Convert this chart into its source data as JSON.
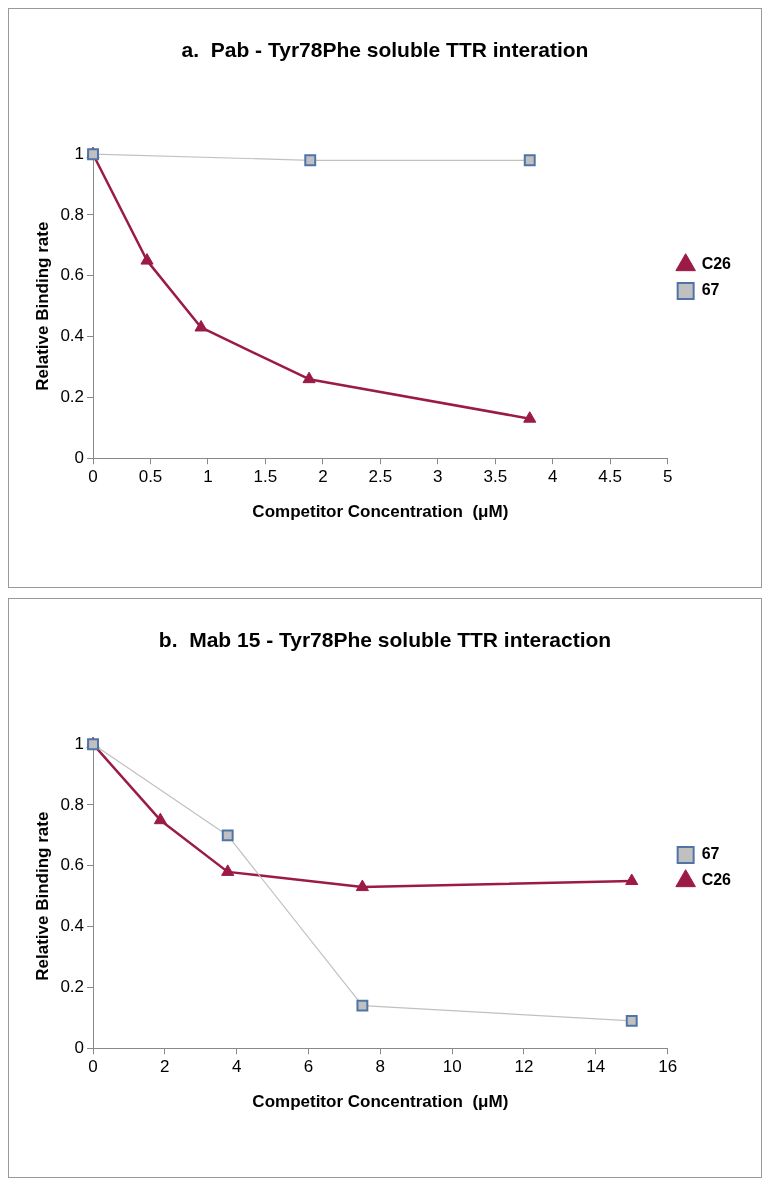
{
  "chart_data": [
    {
      "type": "line",
      "title": "a.  Pab - Tyr78Phe soluble TTR interation",
      "xlabel": "Competitor Concentration  (μM)",
      "ylabel": "Relative Binding rate",
      "xlim": [
        0,
        5
      ],
      "xticks": [
        0,
        0.5,
        1,
        1.5,
        2,
        2.5,
        3,
        3.5,
        4,
        4.5,
        5
      ],
      "ylim": [
        0,
        1
      ],
      "yticks": [
        0,
        0.2,
        0.4,
        0.6,
        0.8,
        1
      ],
      "grid": false,
      "legend": "right",
      "series": [
        {
          "name": "C26",
          "color": "#9b1b46",
          "marker": "triangle",
          "x": [
            0,
            0.47,
            0.94,
            1.88,
            3.8
          ],
          "values": [
            1,
            0.65,
            0.43,
            0.26,
            0.13
          ]
        },
        {
          "name": "67",
          "color": "#c0c0c0",
          "marker": "square",
          "x": [
            0,
            1.89,
            3.8
          ],
          "values": [
            1,
            0.98,
            0.98
          ]
        }
      ]
    },
    {
      "type": "line",
      "title": "b.  Mab 15 - Tyr78Phe soluble TTR interaction",
      "xlabel": "Competitor Concentration  (μM)",
      "ylabel": "Relative Binding rate",
      "xlim": [
        0,
        16
      ],
      "xticks": [
        0,
        2,
        4,
        6,
        8,
        10,
        12,
        14,
        16
      ],
      "ylim": [
        0,
        1
      ],
      "yticks": [
        0,
        0.2,
        0.4,
        0.6,
        0.8,
        1
      ],
      "grid": false,
      "legend": "right",
      "series": [
        {
          "name": "67",
          "color": "#c0c0c0",
          "marker": "square",
          "x": [
            0,
            3.75,
            7.5,
            15
          ],
          "values": [
            1,
            0.7,
            0.14,
            0.09
          ]
        },
        {
          "name": "C26",
          "color": "#9b1b46",
          "marker": "triangle",
          "x": [
            0,
            1.875,
            3.75,
            7.5,
            15
          ],
          "values": [
            1,
            0.75,
            0.58,
            0.53,
            0.55
          ]
        }
      ]
    }
  ]
}
